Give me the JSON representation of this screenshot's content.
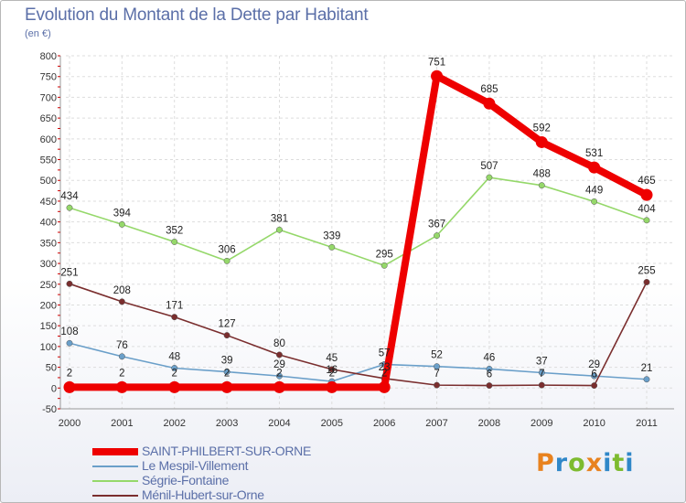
{
  "title": "Evolution du Montant de la Dette par Habitant",
  "subtitle": "(en €)",
  "logo": {
    "text": "Proxiti",
    "letters": [
      {
        "ch": "P",
        "color": "#e8821e"
      },
      {
        "ch": "r",
        "color": "#2f87c8"
      },
      {
        "ch": "o",
        "color": "#7dbb2f"
      },
      {
        "ch": "x",
        "color": "#e8821e"
      },
      {
        "ch": "i",
        "color": "#2f87c8"
      },
      {
        "ch": "t",
        "color": "#7dbb2f"
      },
      {
        "ch": "i",
        "color": "#2f87c8"
      }
    ]
  },
  "chart_data": {
    "type": "line",
    "title": "Evolution du Montant de la Dette par Habitant",
    "ylabel": "(en €)",
    "xlabel": "",
    "x": [
      "2000",
      "2001",
      "2002",
      "2003",
      "2004",
      "2005",
      "2006",
      "2007",
      "2008",
      "2009",
      "2010",
      "2011"
    ],
    "ylim": [
      -50,
      800
    ],
    "yticks": [
      -50,
      0,
      50,
      100,
      150,
      200,
      250,
      300,
      350,
      400,
      450,
      500,
      550,
      600,
      650,
      700,
      750,
      800
    ],
    "grid": true,
    "legend_position": "bottom-left",
    "series": [
      {
        "name": "SAINT-PHILBERT-SUR-ORNE",
        "color": "#ee0000",
        "thick": true,
        "values": [
          2,
          2,
          2,
          2,
          2,
          2,
          2,
          751,
          685,
          592,
          531,
          465
        ],
        "labels": [
          "2",
          "2",
          "2",
          "2",
          "2",
          "2",
          "2",
          "751",
          "685",
          "592",
          "531",
          "465"
        ]
      },
      {
        "name": "Le Mespil-Villement",
        "color": "#6a9fc9",
        "thick": false,
        "values": [
          108,
          76,
          48,
          39,
          29,
          16,
          57,
          52,
          46,
          37,
          29,
          21
        ],
        "labels": [
          "108",
          "76",
          "48",
          "39",
          "29",
          "16",
          "57",
          "52",
          "46",
          "37",
          "29",
          "21"
        ]
      },
      {
        "name": "Ségrie-Fontaine",
        "color": "#95d86a",
        "thick": false,
        "values": [
          434,
          394,
          352,
          306,
          381,
          339,
          295,
          367,
          507,
          488,
          449,
          404
        ],
        "labels": [
          "434",
          "394",
          "352",
          "306",
          "381",
          "339",
          "295",
          "367",
          "507",
          "488",
          "449",
          "404"
        ]
      },
      {
        "name": "Ménil-Hubert-sur-Orne",
        "color": "#7a2e2e",
        "thick": false,
        "values": [
          251,
          208,
          171,
          127,
          80,
          45,
          23,
          7,
          6,
          7,
          6,
          255
        ],
        "labels": [
          "251",
          "208",
          "171",
          "127",
          "80",
          "45",
          "23",
          "7",
          "6",
          "7",
          "6",
          "255"
        ]
      }
    ]
  }
}
